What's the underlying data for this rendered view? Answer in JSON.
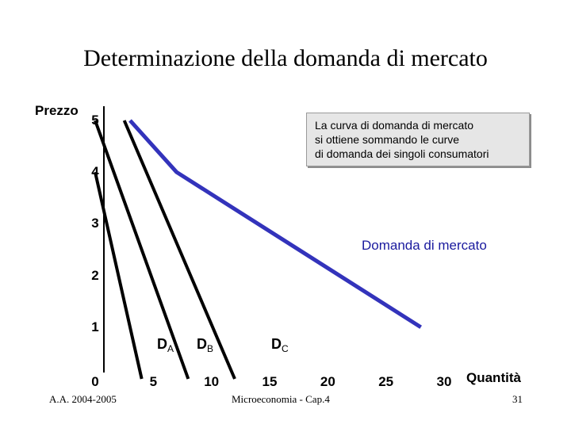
{
  "slide": {
    "title": "Determinazione della domanda di mercato",
    "footer_left": "A.A. 2004-2005",
    "footer_center": "Microeconomia - Cap.4",
    "page_number": "31"
  },
  "annotations": {
    "note_lines": [
      "La curva di domanda di mercato",
      "si ottiene sommando le curve",
      "di domanda dei singoli consumatori"
    ],
    "market_curve_label": "Domanda di mercato",
    "demand_labels": [
      {
        "main": "D",
        "sub": "A"
      },
      {
        "main": "D",
        "sub": "B"
      },
      {
        "main": "D",
        "sub": "C"
      }
    ]
  },
  "colors": {
    "individual": "#000000",
    "market": "#3333bb"
  },
  "chart_data": {
    "type": "line",
    "title": "Determinazione della domanda di mercato",
    "xlabel": "Quantità",
    "ylabel": "Prezzo",
    "x_ticks": [
      "0",
      "5",
      "10",
      "15",
      "20",
      "25",
      "30"
    ],
    "y_ticks": [
      "5",
      "4",
      "3",
      "2",
      "1"
    ],
    "xlim": [
      0,
      30
    ],
    "ylim": [
      0,
      5
    ],
    "series": [
      {
        "name": "DA",
        "points": [
          [
            0,
            4
          ],
          [
            4,
            0
          ]
        ]
      },
      {
        "name": "DB",
        "points": [
          [
            0,
            5
          ],
          [
            8,
            0
          ]
        ]
      },
      {
        "name": "DC",
        "points": [
          [
            2.5,
            5
          ],
          [
            12,
            0
          ]
        ]
      },
      {
        "name": "Domanda di mercato",
        "points": [
          [
            3,
            5
          ],
          [
            7,
            4
          ],
          [
            28,
            1
          ]
        ]
      }
    ]
  }
}
